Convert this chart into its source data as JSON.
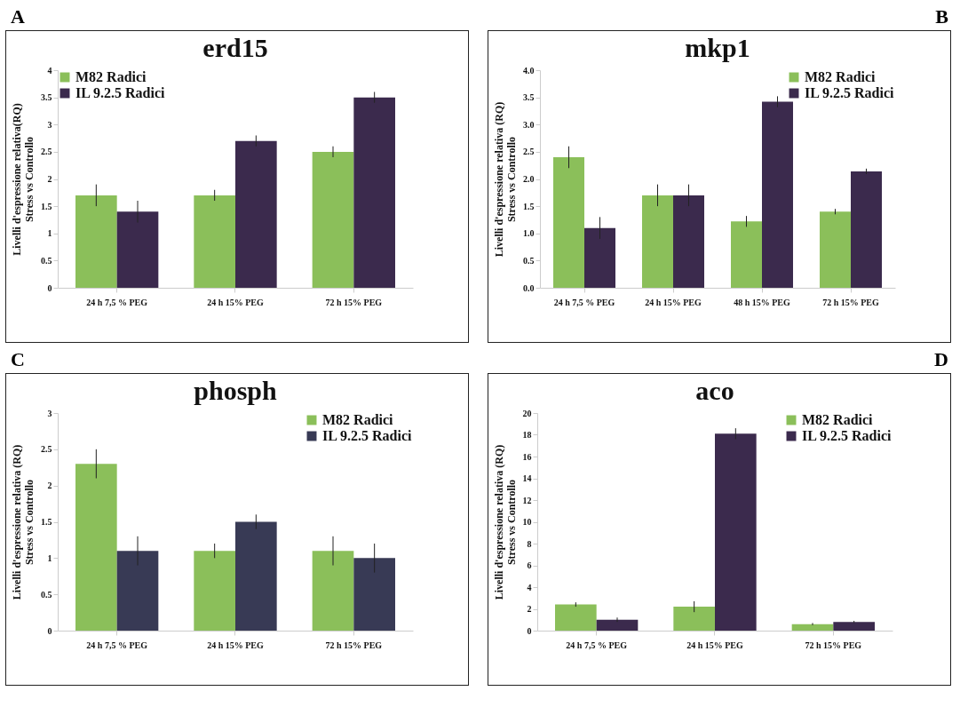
{
  "chart_data": [
    {
      "type": "bar",
      "title": "erd15",
      "ylabel": "Livelli d'espressione relativa(RQ)\nStress  vs  Controllo",
      "annotations": [
        "A"
      ],
      "categories": [
        "24 h 7,5 % PEG",
        "24 h 15% PEG",
        "72 h 15%  PEG"
      ],
      "series": [
        {
          "name": "M82 Radici",
          "color": "#8bbf5a",
          "values": [
            1.7,
            1.7,
            2.5
          ],
          "errors": [
            0.2,
            0.1,
            0.1
          ]
        },
        {
          "name": "IL 9.2.5 Radici",
          "color": "#3b2a4d",
          "values": [
            1.4,
            2.7,
            3.5
          ],
          "errors": [
            0.2,
            0.1,
            0.1
          ]
        }
      ],
      "ylim": [
        0,
        4
      ],
      "yticks": [
        0,
        0.5,
        1,
        1.5,
        2,
        2.5,
        3,
        3.5,
        4
      ],
      "grid": false,
      "legend": "top left"
    },
    {
      "type": "bar",
      "title": "mkp1",
      "ylabel": "Livelli d'espressione relativa (RQ)\nStress vs Controllo",
      "annotations": [
        "B"
      ],
      "categories": [
        "24 h 7,5 % PEG",
        "24 h 15% PEG",
        "48 h 15% PEG",
        "72 h 15% PEG"
      ],
      "series": [
        {
          "name": "M82 Radici",
          "color": "#8bbf5a",
          "values": [
            2.4,
            1.7,
            1.22,
            1.4
          ],
          "errors": [
            0.2,
            0.2,
            0.1,
            0.05
          ]
        },
        {
          "name": "IL 9.2.5 Radici",
          "color": "#3b2a4d",
          "values": [
            1.1,
            1.7,
            3.42,
            2.14
          ],
          "errors": [
            0.2,
            0.2,
            0.1,
            0.05
          ]
        }
      ],
      "ylim": [
        0,
        4
      ],
      "yticks": [
        {
          "value": 0,
          "label": "0.0"
        },
        {
          "value": 0.5,
          "label": "0.5"
        },
        {
          "value": 1,
          "label": "1.0"
        },
        {
          "value": 1.5,
          "label": "1.5"
        },
        {
          "value": 2,
          "label": "2.0"
        },
        {
          "value": 2.5,
          "label": "2.5"
        },
        {
          "value": 3,
          "label": "3.0"
        },
        {
          "value": 3.5,
          "label": "3.5"
        },
        {
          "value": 4,
          "label": "4.0"
        }
      ],
      "grid": false,
      "legend": "top right"
    },
    {
      "type": "bar",
      "title": "phosph",
      "ylabel": "Livelli d'espressione relativa (RQ)\nStress vs Controllo",
      "annotations": [
        "C"
      ],
      "categories": [
        "24 h 7,5 % PEG",
        "24 h 15% PEG",
        "72 h 15% PEG"
      ],
      "series": [
        {
          "name": "M82 Radici",
          "color": "#8bbf5a",
          "values": [
            2.3,
            1.1,
            1.1
          ],
          "errors": [
            0.2,
            0.1,
            0.2
          ]
        },
        {
          "name": "IL 9.2.5 Radici",
          "color": "#383a55",
          "values": [
            1.1,
            1.5,
            1.0
          ],
          "errors": [
            0.2,
            0.1,
            0.2
          ]
        }
      ],
      "ylim": [
        0,
        3
      ],
      "yticks": [
        0,
        0.5,
        1,
        1.5,
        2,
        2.5,
        3
      ],
      "grid": false,
      "legend": "top right"
    },
    {
      "type": "bar",
      "title": "aco",
      "ylabel": "Livelli d'espressione relativa (RQ)\nStress  vs  Controllo",
      "annotations": [
        "D"
      ],
      "categories": [
        "24 h 7,5 % PEG",
        "24 h 15% PEG",
        "72 h 15% PEG"
      ],
      "series": [
        {
          "name": "M82 Radici",
          "color": "#8bbf5a",
          "values": [
            2.4,
            2.2,
            0.6
          ],
          "errors": [
            0.2,
            0.5,
            0.1
          ]
        },
        {
          "name": "IL 9.2.5 Radici",
          "color": "#3b2a4d",
          "values": [
            1.0,
            18.1,
            0.8
          ],
          "errors": [
            0.2,
            0.5,
            0.1
          ]
        }
      ],
      "ylim": [
        0,
        20
      ],
      "yticks": [
        0,
        2,
        4,
        6,
        8,
        10,
        12,
        14,
        16,
        18,
        20
      ],
      "grid": false,
      "legend": "top right"
    }
  ]
}
